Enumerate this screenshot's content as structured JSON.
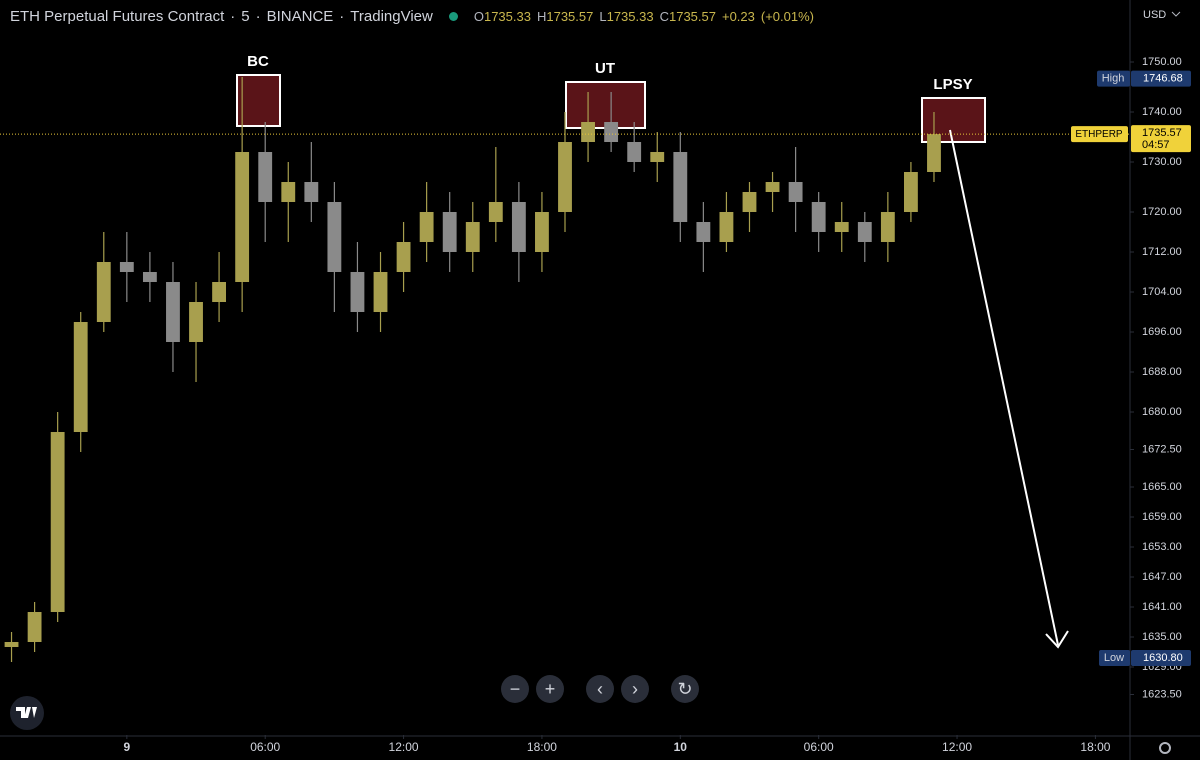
{
  "chart_data": {
    "type": "candlestick",
    "title": "ETH Perpetual Futures Contract",
    "interval": "5",
    "exchange": "BINANCE",
    "source": "TradingView",
    "ohlc_legend": [
      {
        "label": "O",
        "value": 1735.33
      },
      {
        "label": "H",
        "value": 1735.57
      },
      {
        "label": "L",
        "value": 1735.33
      },
      {
        "label": "C",
        "value": 1735.57
      }
    ],
    "change": "+0.23",
    "change_pct": "(+0.01%)",
    "currency": "USD",
    "annotations": [
      "BC",
      "UT",
      "LPSY"
    ],
    "high_tag": {
      "label": "High",
      "price": 1746.68
    },
    "low_tag": {
      "label": "Low",
      "price": {
        "value": 1630.8,
        "label": "1630.80"
      }
    },
    "last_tag": {
      "symbol": "ETHPERP",
      "price": 1735.57,
      "countdown": "04:57"
    },
    "up_color": "#a89f4e",
    "down_color": "#8a8a8a",
    "x": [
      -5,
      -4,
      -3,
      -2,
      -1,
      0,
      1,
      2,
      3,
      4,
      5,
      6,
      7,
      8,
      9,
      10,
      11,
      12,
      13,
      14,
      15,
      16,
      17,
      18,
      19,
      20,
      21,
      22,
      23,
      24,
      25,
      26,
      27,
      28,
      29,
      30,
      31,
      32,
      33,
      34,
      35
    ],
    "open": [
      1633,
      1634,
      1640,
      1676,
      1698,
      1710,
      1708,
      1706,
      1694,
      1702,
      1706,
      1732,
      1722,
      1726,
      1722,
      1708,
      1700,
      1708,
      1714,
      1720,
      1712,
      1718,
      1722,
      1712,
      1720,
      1734,
      1738,
      1734,
      1730,
      1732,
      1718,
      1714,
      1720,
      1724,
      1726,
      1722,
      1716,
      1718,
      1714,
      1720,
      1728
    ],
    "high": [
      1636,
      1642,
      1680,
      1700,
      1716,
      1716,
      1712,
      1710,
      1706,
      1712,
      1747,
      1738,
      1730,
      1734,
      1726,
      1714,
      1712,
      1718,
      1726,
      1724,
      1722,
      1733,
      1726,
      1724,
      1740,
      1744,
      1744,
      1738,
      1736,
      1736,
      1722,
      1724,
      1726,
      1728,
      1733,
      1724,
      1722,
      1720,
      1724,
      1730,
      1740
    ],
    "low": [
      1630,
      1632,
      1638,
      1672,
      1696,
      1702,
      1702,
      1688,
      1686,
      1698,
      1700,
      1714,
      1714,
      1718,
      1700,
      1696,
      1696,
      1704,
      1710,
      1708,
      1708,
      1714,
      1706,
      1708,
      1716,
      1730,
      1732,
      1728,
      1726,
      1714,
      1708,
      1712,
      1716,
      1720,
      1716,
      1712,
      1712,
      1710,
      1710,
      1718,
      1726
    ],
    "close": [
      1634,
      1640,
      1676,
      1698,
      1710,
      1708,
      1706,
      1694,
      1702,
      1706,
      1732,
      1722,
      1726,
      1722,
      1708,
      1700,
      1708,
      1714,
      1720,
      1712,
      1718,
      1722,
      1712,
      1720,
      1734,
      1738,
      1734,
      1730,
      1732,
      1718,
      1714,
      1720,
      1724,
      1726,
      1722,
      1716,
      1718,
      1714,
      1720,
      1728,
      1735.57
    ],
    "xlim": [
      -5.5,
      43.5
    ],
    "xticks": [
      {
        "value": 0,
        "label": "9"
      },
      {
        "value": 6,
        "label": "06:00"
      },
      {
        "value": 12,
        "label": "12:00"
      },
      {
        "value": 18,
        "label": "18:00"
      },
      {
        "value": 24,
        "label": "10"
      },
      {
        "value": 30,
        "label": "06:00"
      },
      {
        "value": 36,
        "label": "12:00"
      },
      {
        "value": 42,
        "label": "18:00"
      }
    ],
    "ylim": [
      1615.4,
      1762.4
    ],
    "yticks": [
      {
        "value": 1750,
        "label": "1750.00"
      },
      {
        "value": 1740,
        "label": "1740.00"
      },
      {
        "value": 1730,
        "label": "1730.00"
      },
      {
        "value": 1720,
        "label": "1720.00"
      },
      {
        "value": 1712,
        "label": "1712.00"
      },
      {
        "value": 1704,
        "label": "1704.00"
      },
      {
        "value": 1696,
        "label": "1696.00"
      },
      {
        "value": 1688,
        "label": "1688.00"
      },
      {
        "value": 1680,
        "label": "1680.00"
      },
      {
        "value": 1672.5,
        "label": "1672.50"
      },
      {
        "value": 1665,
        "label": "1665.00"
      },
      {
        "value": 1659,
        "label": "1659.00"
      },
      {
        "value": 1653,
        "label": "1653.00"
      },
      {
        "value": 1647,
        "label": "1647.00"
      },
      {
        "value": 1641,
        "label": "1641.00"
      },
      {
        "value": 1635,
        "label": "1635.00"
      },
      {
        "value": 1629,
        "label": "1629.00"
      },
      {
        "value": 1623.5,
        "label": "1623.50"
      }
    ]
  }
}
